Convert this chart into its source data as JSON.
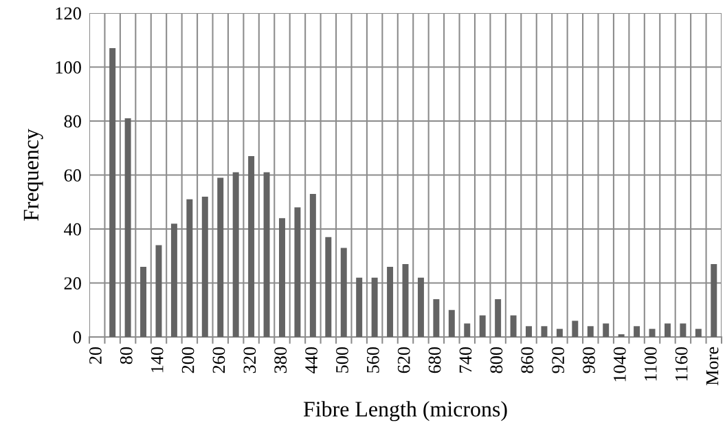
{
  "chart_data": {
    "type": "bar",
    "xlabel": "Fibre Length (microns)",
    "ylabel": "Frequency",
    "categories": [
      "20",
      null,
      "80",
      null,
      "140",
      null,
      "200",
      null,
      "260",
      null,
      "320",
      null,
      "380",
      null,
      "440",
      null,
      "500",
      null,
      "560",
      null,
      "620",
      null,
      "680",
      null,
      "740",
      null,
      "800",
      null,
      "860",
      null,
      "920",
      null,
      "980",
      null,
      "1040",
      null,
      "1100",
      null,
      "1160",
      null,
      "More"
    ],
    "values": [
      0,
      107,
      81,
      26,
      34,
      42,
      51,
      52,
      59,
      61,
      67,
      61,
      44,
      48,
      53,
      37,
      33,
      22,
      22,
      26,
      27,
      22,
      14,
      10,
      5,
      8,
      14,
      8,
      4,
      4,
      3,
      6,
      4,
      5,
      1,
      4,
      3,
      5,
      5,
      3,
      27
    ],
    "color": "#636363",
    "ylim": [
      0,
      120
    ],
    "yticks": [
      0,
      20,
      40,
      60,
      80,
      100,
      120
    ],
    "grid": true
  }
}
